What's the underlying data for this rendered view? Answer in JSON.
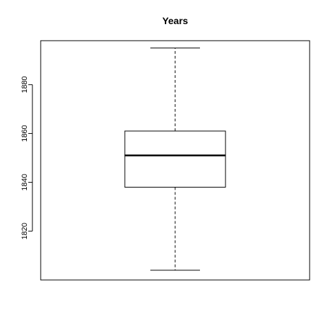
{
  "chart_data": {
    "type": "boxplot",
    "title": "Years",
    "xlabel": "",
    "ylabel": "",
    "ylim": [
      1800,
      1898
    ],
    "yticks": [
      1820,
      1840,
      1860,
      1880
    ],
    "ytick_labels": [
      "1820",
      "1840",
      "1860",
      "1880"
    ],
    "grid": false,
    "legend": "none",
    "box": {
      "whisker_low": 1804,
      "q1": 1838,
      "median": 1851,
      "q3": 1861,
      "whisker_high": 1895
    },
    "colors": {
      "stroke": "#000000",
      "background": "#ffffff"
    }
  }
}
